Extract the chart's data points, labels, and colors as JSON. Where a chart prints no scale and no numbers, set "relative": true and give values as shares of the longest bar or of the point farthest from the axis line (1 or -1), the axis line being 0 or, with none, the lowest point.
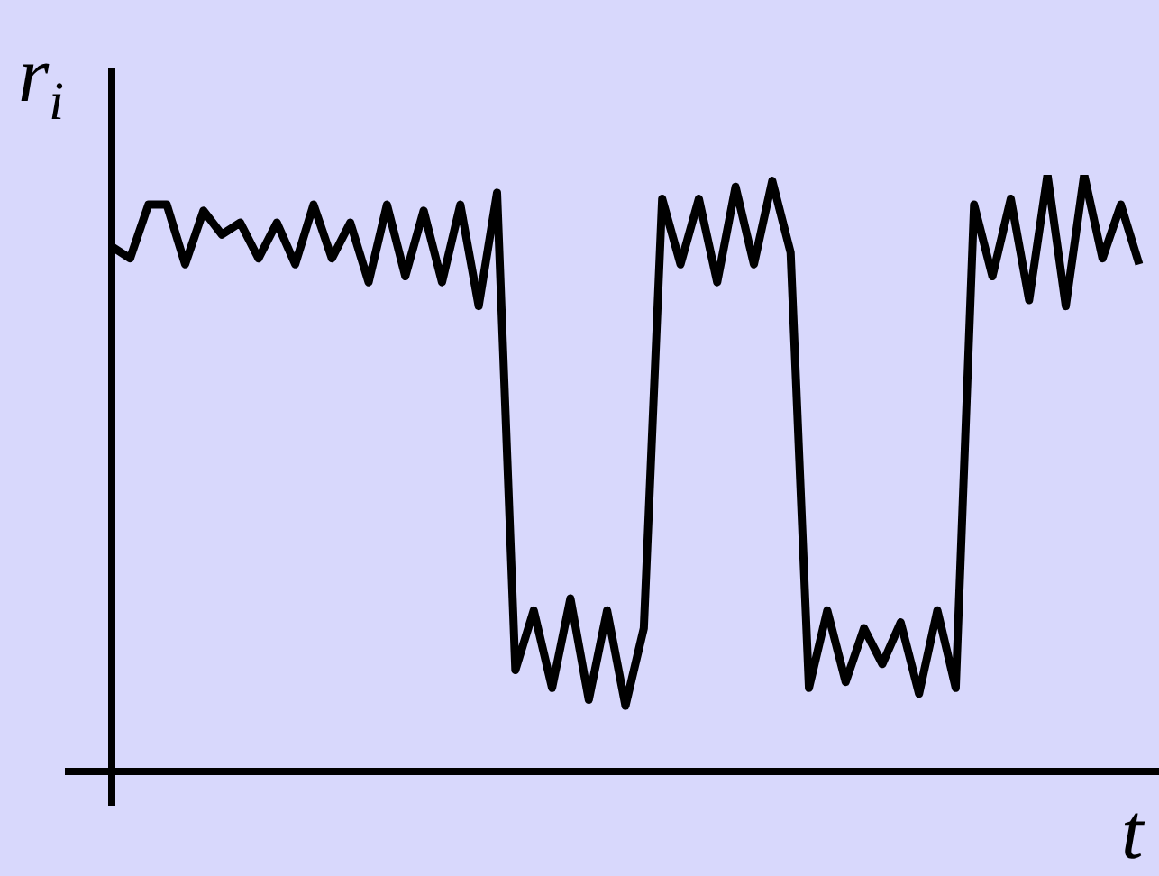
{
  "chart_data": {
    "type": "line",
    "xlabel": "t",
    "ylabel": "r$_{i}$",
    "relative": true,
    "color": "#000000",
    "legend": false,
    "marker": "none",
    "categories": [
      null,
      null,
      null,
      null,
      null,
      null,
      null,
      null,
      null,
      null,
      null,
      null,
      null,
      null,
      null,
      null,
      null,
      null,
      null,
      null,
      null,
      null,
      null,
      null,
      null,
      null,
      null,
      null,
      null,
      null,
      null,
      null,
      null,
      null,
      null,
      null,
      null,
      null,
      null,
      null,
      null,
      null,
      null,
      null,
      null,
      null,
      null,
      null,
      null,
      null,
      null,
      null,
      null,
      null,
      null,
      null,
      null
    ],
    "values": [
      0.88,
      0.86,
      0.95,
      0.95,
      0.85,
      0.94,
      0.9,
      0.92,
      0.86,
      0.92,
      0.85,
      0.95,
      0.86,
      0.92,
      0.82,
      0.95,
      0.83,
      0.94,
      0.82,
      0.95,
      0.78,
      0.97,
      0.17,
      0.27,
      0.14,
      0.29,
      0.12,
      0.27,
      0.11,
      0.24,
      0.96,
      0.85,
      0.96,
      0.82,
      0.98,
      0.85,
      0.99,
      0.87,
      0.14,
      0.27,
      0.15,
      0.24,
      0.18,
      0.25,
      0.13,
      0.27,
      0.14,
      0.95,
      0.83,
      0.96,
      0.79,
      1,
      0.78,
      1,
      0.86,
      0.95,
      0.85
    ]
  }
}
